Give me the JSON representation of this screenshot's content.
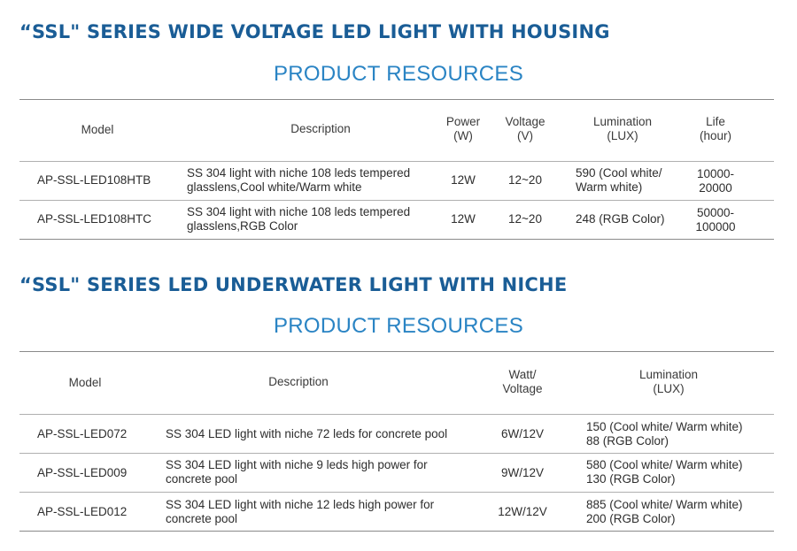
{
  "section1": {
    "title": "“SSL\" SERIES WIDE VOLTAGE LED LIGHT WITH HOUSING",
    "subtitle": "PRODUCT RESOURCES",
    "headers": {
      "model": "Model",
      "description": "Description",
      "power": [
        "Power",
        "(W)"
      ],
      "voltage": [
        "Voltage",
        "(V)"
      ],
      "lumination": [
        "Lumination",
        "(LUX)"
      ],
      "life": [
        "Life",
        "(hour)"
      ]
    },
    "rows": [
      {
        "model": "AP-SSL-LED108HTB",
        "description": [
          "SS 304 light with niche 108 leds tempered",
          "glasslens,Cool white/Warm white"
        ],
        "power": "12W",
        "voltage": "12~20",
        "lumination": [
          "590 (Cool white/",
          "Warm white)"
        ],
        "life": [
          "10000-",
          "20000"
        ]
      },
      {
        "model": "AP-SSL-LED108HTC",
        "description": [
          "SS 304 light with niche 108 leds tempered",
          "glasslens,RGB Color"
        ],
        "power": "12W",
        "voltage": "12~20",
        "lumination": [
          "248 (RGB Color)"
        ],
        "life": [
          "50000-",
          "100000"
        ]
      }
    ]
  },
  "section2": {
    "title": "“SSL\" SERIES LED UNDERWATER LIGHT WITH NICHE",
    "subtitle": "PRODUCT RESOURCES",
    "headers": {
      "model": "Model",
      "description": "Description",
      "watt": [
        "Watt/",
        "Voltage"
      ],
      "lumination": [
        "Lumination",
        "(LUX)"
      ]
    },
    "rows": [
      {
        "model": "AP-SSL-LED072",
        "description": [
          "SS 304 LED light with niche 72 leds for concrete pool"
        ],
        "watt": "6W/12V",
        "lumination": [
          "150 (Cool white/ Warm white)",
          "88 (RGB Color)"
        ]
      },
      {
        "model": "AP-SSL-LED009",
        "description": [
          "SS 304 LED light with niche 9 leds high power for",
          "concrete pool"
        ],
        "watt": "9W/12V",
        "lumination": [
          "580 (Cool white/ Warm white)",
          "130 (RGB Color)"
        ]
      },
      {
        "model": "AP-SSL-LED012",
        "description": [
          "SS 304 LED light with niche 12 leds high power for",
          "concrete pool"
        ],
        "watt": "12W/12V",
        "lumination": [
          "885 (Cool white/ Warm white)",
          "200 (RGB Color)"
        ]
      }
    ]
  },
  "colors": {
    "section_title": "#1a5d96",
    "resources_title": "#2a84c4",
    "rule": "#8a8a8a",
    "text": "#2d2d2d"
  }
}
